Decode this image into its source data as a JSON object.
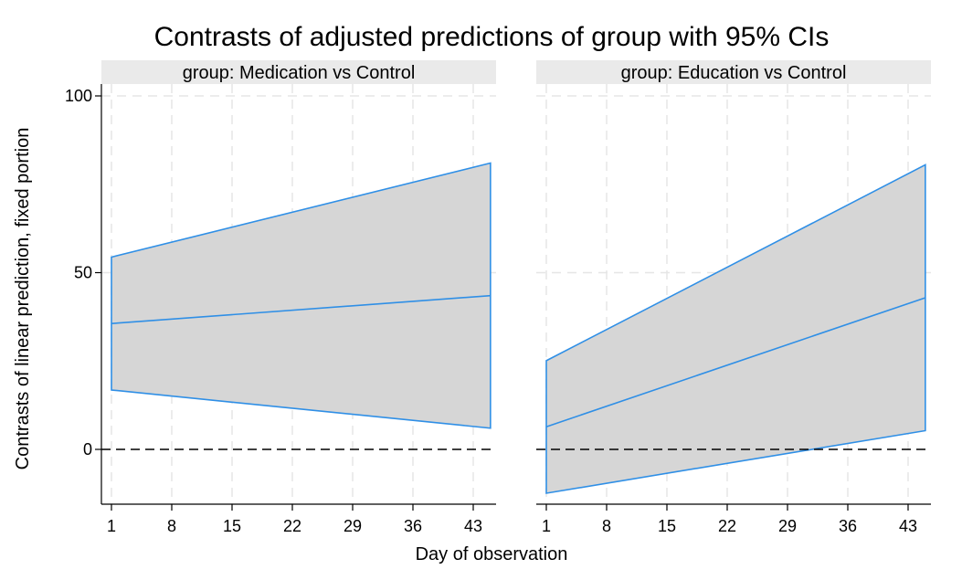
{
  "chart_data": {
    "type": "area",
    "title": "Contrasts of adjusted predictions of group with 95% CIs",
    "xlabel": "Day of observation",
    "ylabel": "Contrasts of linear prediction, fixed portion",
    "x_ticks": [
      1,
      8,
      15,
      22,
      29,
      36,
      43
    ],
    "y_ticks": [
      0,
      50,
      100
    ],
    "xlim": [
      0,
      46
    ],
    "ylim": [
      -15,
      102
    ],
    "reference_line_y": 0,
    "grid": true,
    "colors": {
      "line": "#2f8fe6",
      "band": "#d6d6d6",
      "strip": "#eaeaea",
      "grid": "#e6e6e6",
      "refline": "#000000"
    },
    "panels": [
      {
        "label": "group: Medication vs Control",
        "x": [
          1,
          45
        ],
        "estimate": [
          35.6,
          43.5
        ],
        "ci_lower": [
          16.8,
          6.0
        ],
        "ci_upper": [
          54.4,
          81.0
        ]
      },
      {
        "label": "group: Education vs Control",
        "x": [
          1,
          45
        ],
        "estimate": [
          6.4,
          42.9
        ],
        "ci_lower": [
          -12.4,
          5.3
        ],
        "ci_upper": [
          25.1,
          80.5
        ]
      }
    ]
  }
}
